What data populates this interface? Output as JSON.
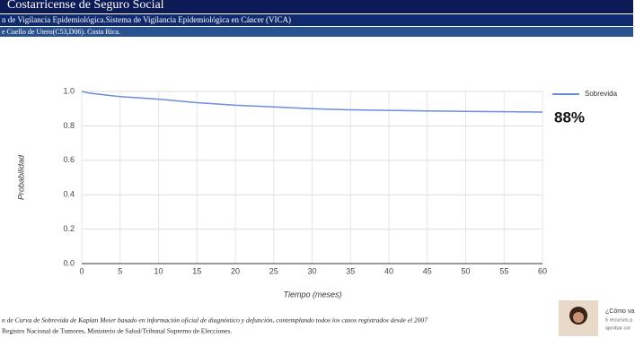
{
  "header": {
    "title": "Costarricense de Seguro Social",
    "system": "n de Vigilancia Epidemiológica.Sistema de Vigilancia Epidemiológica en Cáncer (VICA)",
    "subtitle": "e Cuello de Utero(C53,D06). Costa Rica."
  },
  "chart_data": {
    "type": "line",
    "xlabel": "Tiempo (meses)",
    "ylabel": "Probabilidad",
    "annotation": "88%",
    "x": [
      0,
      1,
      2,
      5,
      10,
      15,
      20,
      25,
      30,
      35,
      40,
      45,
      50,
      55,
      60
    ],
    "series": [
      {
        "name": "Sobrevida",
        "color": "#6a8fd8",
        "values": [
          1.0,
          0.99,
          0.985,
          0.97,
          0.955,
          0.935,
          0.92,
          0.91,
          0.9,
          0.893,
          0.89,
          0.887,
          0.884,
          0.882,
          0.88
        ]
      }
    ],
    "xlim": [
      0,
      60
    ],
    "xticks": [
      0,
      5,
      10,
      15,
      20,
      25,
      30,
      35,
      40,
      45,
      50,
      55,
      60
    ],
    "ylim": [
      0,
      1
    ],
    "yticks": [
      {
        "value": 0,
        "label": "0.0"
      },
      0.2,
      0.4,
      0.6,
      0.8,
      {
        "value": 1,
        "label": "1.0"
      }
    ],
    "grid": true,
    "legend": "right"
  },
  "footer": {
    "note": "n de Curva de Sobrevida de Kaplan Meier basado en información oficial de diagnóstico y defunción, contemplando todos los casos registrados desde el 2007",
    "source": "Registro Nacional de Tumores, Ministerio de Salud/Tribunal Supremo de Elecciones."
  },
  "sidebar": {
    "lines": [
      "¿Cómo va",
      "5 recursos p",
      "aprobar cor"
    ]
  }
}
